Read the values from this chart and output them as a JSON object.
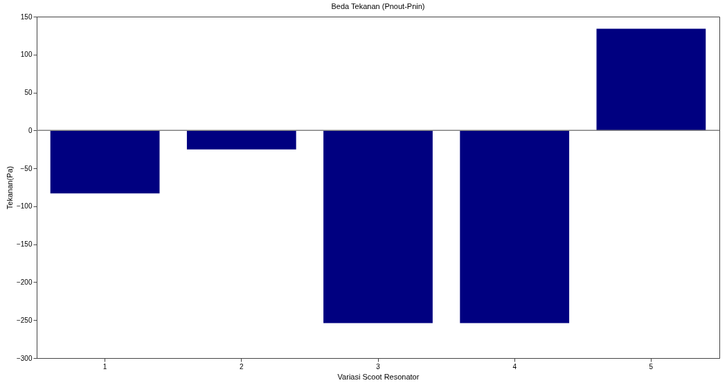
{
  "chart_data": {
    "type": "bar",
    "title": "Beda Tekanan (Pnout-Pnin)",
    "xlabel": "Variasi Scoot Resonator",
    "ylabel": "Tekanan(Pa)",
    "categories": [
      "1",
      "2",
      "3",
      "4",
      "5"
    ],
    "values": [
      -83,
      -25,
      -254,
      -254,
      134
    ],
    "color": "#000080",
    "ylim": [
      -300,
      150
    ],
    "yticks": [
      -300,
      -250,
      -200,
      -150,
      -100,
      -50,
      0,
      50,
      100,
      150
    ],
    "ref_lines": [
      {
        "axis": "y",
        "value": 0,
        "color": "#808080"
      }
    ],
    "grid": false
  }
}
